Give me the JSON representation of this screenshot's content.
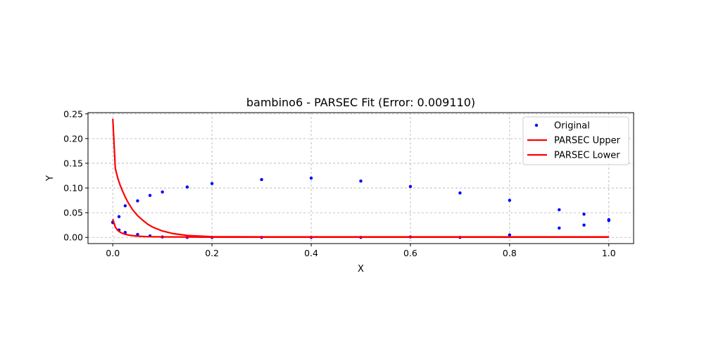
{
  "chart_data": {
    "type": "line",
    "title": "bambino6 - PARSEC Fit (Error: 0.009110)",
    "xlabel": "X",
    "ylabel": "Y",
    "xlim": [
      -0.05,
      1.05
    ],
    "ylim": [
      -0.0125,
      0.2525
    ],
    "xticks": [
      0.0,
      0.2,
      0.4,
      0.6,
      0.8,
      1.0
    ],
    "xtick_labels": [
      "0.0",
      "0.2",
      "0.4",
      "0.6",
      "0.8",
      "1.0"
    ],
    "yticks": [
      0.0,
      0.05,
      0.1,
      0.15,
      0.2,
      0.25
    ],
    "ytick_labels": [
      "0.00",
      "0.05",
      "0.10",
      "0.15",
      "0.20",
      "0.25"
    ],
    "grid": true,
    "legend_position": "upper-right",
    "series": [
      {
        "name": "Original",
        "kind": "scatter",
        "color": "#0000ff",
        "points": [
          [
            0.0,
            0.031
          ],
          [
            0.0125,
            0.042
          ],
          [
            0.025,
            0.064
          ],
          [
            0.05,
            0.074
          ],
          [
            0.075,
            0.085
          ],
          [
            0.1,
            0.092
          ],
          [
            0.15,
            0.102
          ],
          [
            0.2,
            0.109
          ],
          [
            0.3,
            0.117
          ],
          [
            0.4,
            0.12
          ],
          [
            0.5,
            0.114
          ],
          [
            0.6,
            0.103
          ],
          [
            0.7,
            0.09
          ],
          [
            0.8,
            0.075
          ],
          [
            0.9,
            0.056
          ],
          [
            0.95,
            0.047
          ],
          [
            1.0,
            0.036
          ],
          [
            0.0,
            0.03
          ],
          [
            0.0125,
            0.015
          ],
          [
            0.025,
            0.01
          ],
          [
            0.05,
            0.006
          ],
          [
            0.075,
            0.003
          ],
          [
            0.1,
            0.001
          ],
          [
            0.15,
            0.0
          ],
          [
            0.2,
            0.0
          ],
          [
            0.3,
            0.0
          ],
          [
            0.4,
            0.0
          ],
          [
            0.5,
            0.0
          ],
          [
            0.6,
            0.001
          ],
          [
            0.7,
            0.0
          ],
          [
            0.8,
            0.005
          ],
          [
            0.9,
            0.019
          ],
          [
            0.95,
            0.025
          ],
          [
            1.0,
            0.034
          ]
        ]
      },
      {
        "name": "PARSEC Upper",
        "kind": "line",
        "color": "#ff0000",
        "points": [
          [
            0.0,
            0.24
          ],
          [
            0.005,
            0.14
          ],
          [
            0.01,
            0.12
          ],
          [
            0.015,
            0.105
          ],
          [
            0.02,
            0.093
          ],
          [
            0.025,
            0.082
          ],
          [
            0.03,
            0.072
          ],
          [
            0.04,
            0.056
          ],
          [
            0.05,
            0.044
          ],
          [
            0.06,
            0.035
          ],
          [
            0.07,
            0.027
          ],
          [
            0.08,
            0.021
          ],
          [
            0.1,
            0.013
          ],
          [
            0.12,
            0.008
          ],
          [
            0.15,
            0.004
          ],
          [
            0.2,
            0.0015
          ],
          [
            0.3,
            0.001
          ],
          [
            0.5,
            0.001
          ],
          [
            0.7,
            0.001
          ],
          [
            1.0,
            0.001
          ]
        ]
      },
      {
        "name": "PARSEC Lower",
        "kind": "line",
        "color": "#ff0000",
        "points": [
          [
            0.0,
            0.037
          ],
          [
            0.005,
            0.021
          ],
          [
            0.01,
            0.014
          ],
          [
            0.015,
            0.0105
          ],
          [
            0.02,
            0.008
          ],
          [
            0.03,
            0.005
          ],
          [
            0.04,
            0.0035
          ],
          [
            0.05,
            0.0025
          ],
          [
            0.07,
            0.0015
          ],
          [
            0.1,
            0.001
          ],
          [
            0.2,
            0.0005
          ],
          [
            0.5,
            0.0005
          ],
          [
            1.0,
            0.0005
          ]
        ]
      }
    ]
  }
}
